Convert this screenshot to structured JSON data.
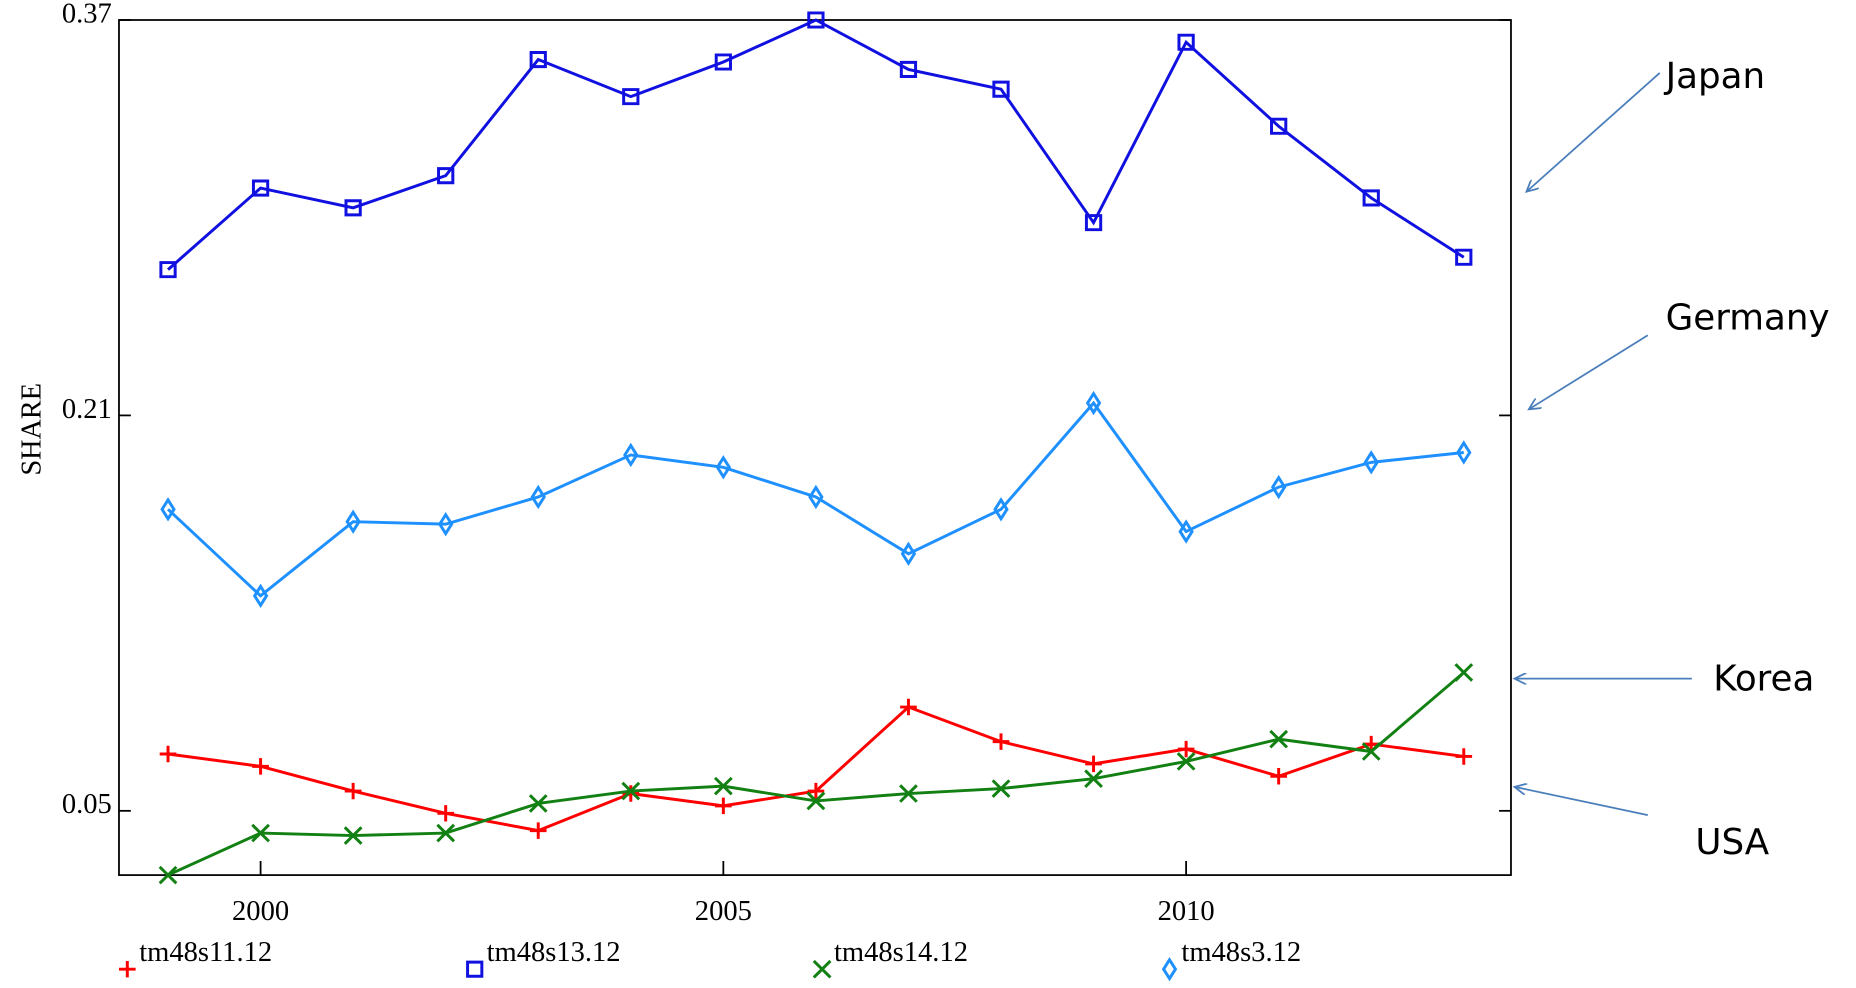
{
  "chart_data": {
    "type": "line",
    "y_label": "SHARE",
    "x": [
      1999,
      2000,
      2001,
      2002,
      2003,
      2004,
      2005,
      2006,
      2007,
      2008,
      2009,
      2010,
      2011,
      2012,
      2013
    ],
    "xlim": [
      1998.47,
      2013.51
    ],
    "xticks": [
      2000,
      2005,
      2010
    ],
    "ylim": [
      0.024,
      0.37
    ],
    "yticks": [
      0.05,
      0.21,
      0.37
    ],
    "series": [
      {
        "name": "tm48s11.12",
        "color": "#ff0000",
        "marker": "plus",
        "values": [
          0.073,
          0.068,
          0.058,
          0.049,
          0.042,
          0.057,
          0.052,
          0.058,
          0.092,
          0.078,
          0.069,
          0.075,
          0.064,
          0.077,
          0.072
        ]
      },
      {
        "name": "tm48s13.12",
        "color": "#1010e0",
        "marker": "square",
        "values": [
          0.269,
          0.302,
          0.294,
          0.307,
          0.354,
          0.339,
          0.353,
          0.37,
          0.35,
          0.342,
          0.288,
          0.361,
          0.327,
          0.298,
          0.274
        ]
      },
      {
        "name": "tm48s14.12",
        "color": "#128012",
        "marker": "cross",
        "values": [
          0.024,
          0.041,
          0.04,
          0.041,
          0.053,
          0.058,
          0.06,
          0.054,
          0.057,
          0.059,
          0.063,
          0.07,
          0.079,
          0.074,
          0.106
        ]
      },
      {
        "name": "tm48s3.12",
        "color": "#1e90ff",
        "marker": "diamond",
        "values": [
          0.172,
          0.137,
          0.167,
          0.166,
          0.177,
          0.194,
          0.189,
          0.177,
          0.154,
          0.172,
          0.215,
          0.163,
          0.181,
          0.191,
          0.195
        ]
      }
    ],
    "annotations": [
      "Japan",
      "Germany",
      "Korea",
      "USA"
    ]
  }
}
